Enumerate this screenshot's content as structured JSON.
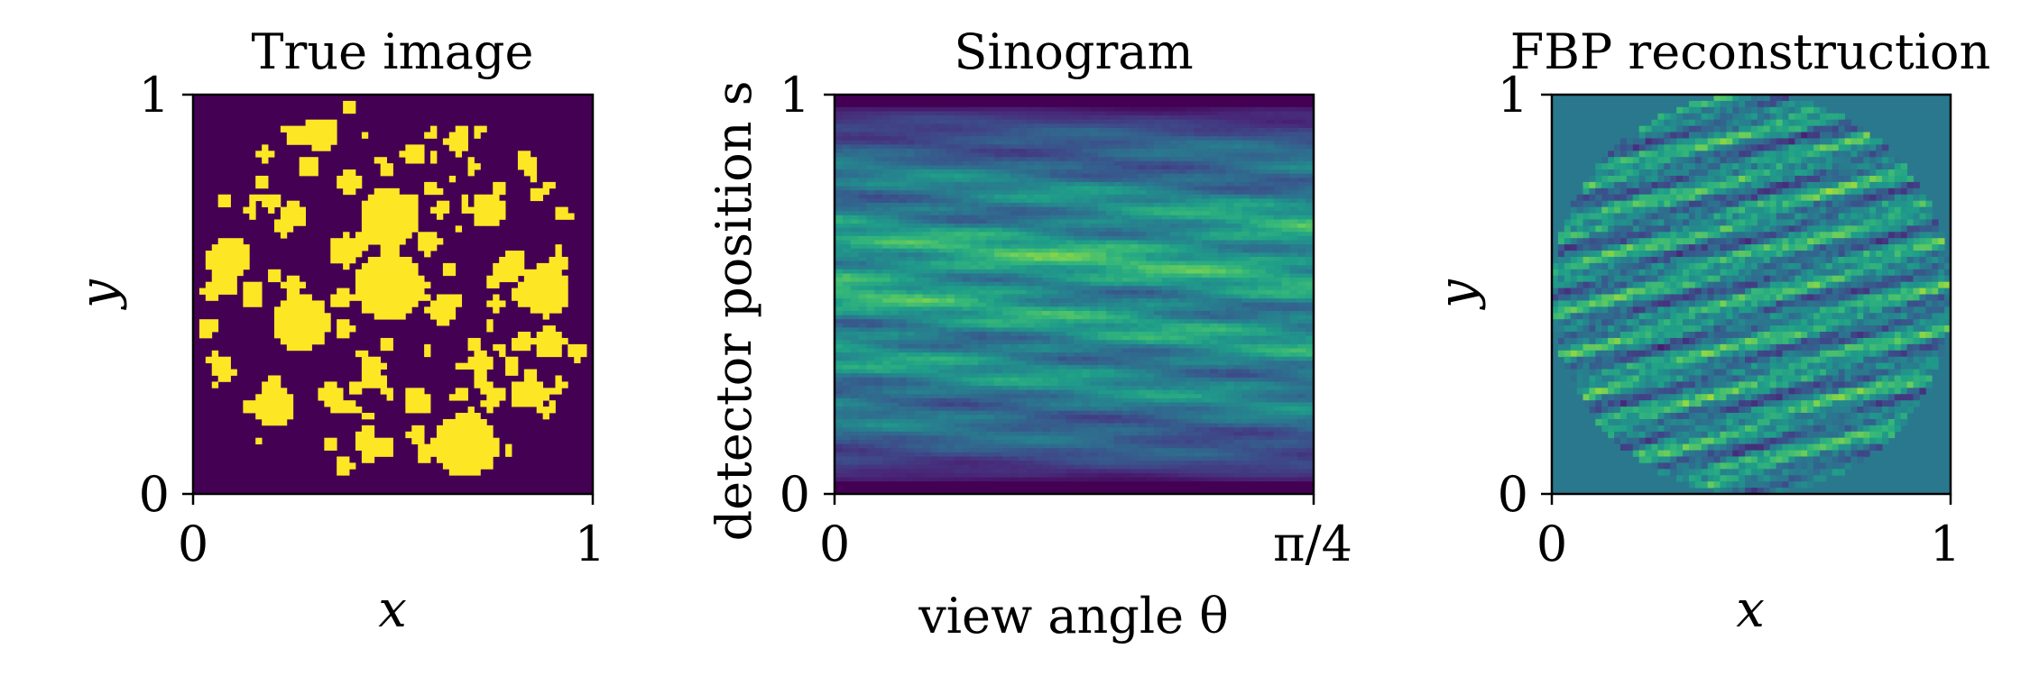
{
  "chart_data": [
    {
      "type": "heatmap",
      "title": "True image",
      "xlabel": "x",
      "ylabel": "y",
      "xlim": [
        0,
        1
      ],
      "ylim": [
        0,
        1
      ],
      "xticks": [
        "0",
        "1"
      ],
      "yticks": [
        "0",
        "1"
      ],
      "colormap": "viridis",
      "content": "binary phantom: random filled disks inside a circular support",
      "background_color": "#440154",
      "foreground_color": "#fde725"
    },
    {
      "type": "heatmap",
      "title": "Sinogram",
      "xlabel": "view angle θ",
      "ylabel": "detector position s",
      "xlim": [
        0,
        0.785398
      ],
      "ylim": [
        0,
        1
      ],
      "xticks": [
        "0",
        "π/4"
      ],
      "yticks": [
        "0",
        "1"
      ],
      "colormap": "viridis"
    },
    {
      "type": "heatmap",
      "title": "FBP reconstruction",
      "xlabel": "x",
      "ylabel": "y",
      "xlim": [
        0,
        1
      ],
      "ylim": [
        0,
        1
      ],
      "xticks": [
        "0",
        "1"
      ],
      "yticks": [
        "0",
        "1"
      ],
      "colormap": "viridis",
      "background_color": "#2a788e"
    }
  ]
}
